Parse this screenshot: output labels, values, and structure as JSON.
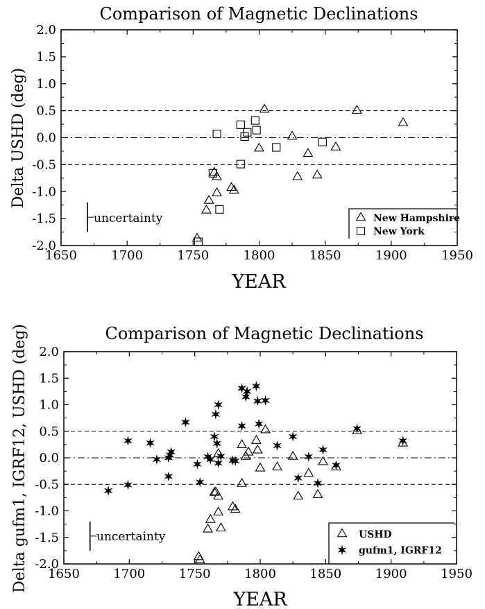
{
  "chart_data": [
    {
      "type": "scatter",
      "title": "Comparison of Magnetic Declinations",
      "xlabel": "YEAR",
      "ylabel": "Delta USHD (deg)",
      "xlim": [
        1650,
        1950
      ],
      "ylim": [
        -2.0,
        2.0
      ],
      "xticks": [
        "1650",
        "1700",
        "1750",
        "1800",
        "1850",
        "1900",
        "1950"
      ],
      "yticks": [
        "2.0",
        "1.5",
        "1.0",
        "0.5",
        "0.0",
        "-0.5",
        "-1.0",
        "-1.5",
        "-2.0"
      ],
      "reference_lines": [
        {
          "y": 0.5,
          "style": "dashed"
        },
        {
          "y": 0.0,
          "style": "dash-dot"
        },
        {
          "y": -0.5,
          "style": "dashed"
        }
      ],
      "uncertainty_label": "uncertainty",
      "uncertainty_bar": {
        "x": 1670,
        "y_from": -1.2,
        "y_to": -1.75
      },
      "legend_position": "bottom-right",
      "series": [
        {
          "name": "New Hampshire",
          "marker": "triangle-open",
          "points": [
            [
              1753,
              -1.87
            ],
            [
              1760,
              -1.35
            ],
            [
              1762,
              -1.17
            ],
            [
              1766,
              -0.65
            ],
            [
              1768,
              -0.73
            ],
            [
              1768,
              -1.03
            ],
            [
              1779,
              -0.93
            ],
            [
              1781,
              -0.98
            ],
            [
              1800,
              -0.2
            ],
            [
              1804,
              0.52
            ],
            [
              1825,
              0.02
            ],
            [
              1829,
              -0.73
            ],
            [
              1837,
              -0.3
            ],
            [
              1844,
              -0.7
            ],
            [
              1858,
              -0.18
            ],
            [
              1874,
              0.5
            ],
            [
              1909,
              0.27
            ]
          ]
        },
        {
          "name": "New York",
          "marker": "square-open",
          "points": [
            [
              1754,
              -1.93
            ],
            [
              1765,
              -0.66
            ],
            [
              1768,
              0.07
            ],
            [
              1770,
              -1.33
            ],
            [
              1786,
              0.24
            ],
            [
              1786,
              -0.49
            ],
            [
              1789,
              0.02
            ],
            [
              1791,
              0.1
            ],
            [
              1797,
              0.32
            ],
            [
              1798,
              0.14
            ],
            [
              1813,
              -0.18
            ],
            [
              1848,
              -0.08
            ]
          ]
        }
      ]
    },
    {
      "type": "scatter",
      "title": "Comparison of Magnetic Declinations",
      "xlabel": "YEAR",
      "ylabel": "Delta gufm1, IGRF12, USHD (deg)",
      "xlim": [
        1650,
        1950
      ],
      "ylim": [
        -2.0,
        2.0
      ],
      "xticks": [
        "1650",
        "1700",
        "1750",
        "1800",
        "1850",
        "1900",
        "1950"
      ],
      "yticks": [
        "2.0",
        "1.5",
        "1.0",
        "0.5",
        "0.0",
        "-0.5",
        "-1.0",
        "-1.5",
        "-2.0"
      ],
      "reference_lines": [
        {
          "y": 0.5,
          "style": "dashed"
        },
        {
          "y": 0.0,
          "style": "dash-dot"
        },
        {
          "y": -0.5,
          "style": "dashed"
        }
      ],
      "uncertainty_label": "uncertainty",
      "uncertainty_bar": {
        "x": 1670,
        "y_from": -1.2,
        "y_to": -1.75
      },
      "legend_position": "bottom-right",
      "series": [
        {
          "name": "USHD",
          "marker": "triangle-open",
          "points": [
            [
              1753,
              -1.87
            ],
            [
              1754,
              -1.93
            ],
            [
              1760,
              -1.35
            ],
            [
              1762,
              -1.17
            ],
            [
              1765,
              -0.66
            ],
            [
              1766,
              -0.65
            ],
            [
              1768,
              -0.73
            ],
            [
              1768,
              -1.03
            ],
            [
              1768,
              0.07
            ],
            [
              1770,
              -1.33
            ],
            [
              1779,
              -0.93
            ],
            [
              1781,
              -0.98
            ],
            [
              1786,
              0.24
            ],
            [
              1786,
              -0.49
            ],
            [
              1789,
              0.02
            ],
            [
              1791,
              0.1
            ],
            [
              1797,
              0.32
            ],
            [
              1798,
              0.14
            ],
            [
              1800,
              -0.2
            ],
            [
              1804,
              0.52
            ],
            [
              1813,
              -0.18
            ],
            [
              1825,
              0.02
            ],
            [
              1829,
              -0.73
            ],
            [
              1837,
              -0.3
            ],
            [
              1844,
              -0.7
            ],
            [
              1848,
              -0.08
            ],
            [
              1858,
              -0.18
            ],
            [
              1874,
              0.5
            ],
            [
              1909,
              0.27
            ]
          ]
        },
        {
          "name": "gufm1, IGRF12",
          "marker": "star-filled",
          "points": [
            [
              1684,
              -0.62
            ],
            [
              1699,
              0.32
            ],
            [
              1699,
              -0.51
            ],
            [
              1716,
              0.28
            ],
            [
              1721,
              -0.03
            ],
            [
              1730,
              -0.35
            ],
            [
              1730,
              0.0
            ],
            [
              1731,
              0.05
            ],
            [
              1732,
              0.11
            ],
            [
              1743,
              0.67
            ],
            [
              1752,
              -0.12
            ],
            [
              1754,
              -0.46
            ],
            [
              1760,
              0.02
            ],
            [
              1762,
              -0.03
            ],
            [
              1765,
              0.4
            ],
            [
              1766,
              0.82
            ],
            [
              1767,
              0.27
            ],
            [
              1768,
              -0.1
            ],
            [
              1768,
              1.0
            ],
            [
              1770,
              0.03
            ],
            [
              1779,
              -0.05
            ],
            [
              1781,
              -0.06
            ],
            [
              1786,
              1.31
            ],
            [
              1786,
              0.6
            ],
            [
              1789,
              1.15
            ],
            [
              1790,
              1.25
            ],
            [
              1797,
              1.35
            ],
            [
              1798,
              1.07
            ],
            [
              1799,
              0.64
            ],
            [
              1804,
              1.08
            ],
            [
              1813,
              0.23
            ],
            [
              1825,
              0.4
            ],
            [
              1829,
              -0.38
            ],
            [
              1837,
              0.02
            ],
            [
              1844,
              -0.48
            ],
            [
              1848,
              0.15
            ],
            [
              1858,
              -0.14
            ],
            [
              1874,
              0.55
            ],
            [
              1909,
              0.32
            ]
          ]
        }
      ]
    }
  ]
}
